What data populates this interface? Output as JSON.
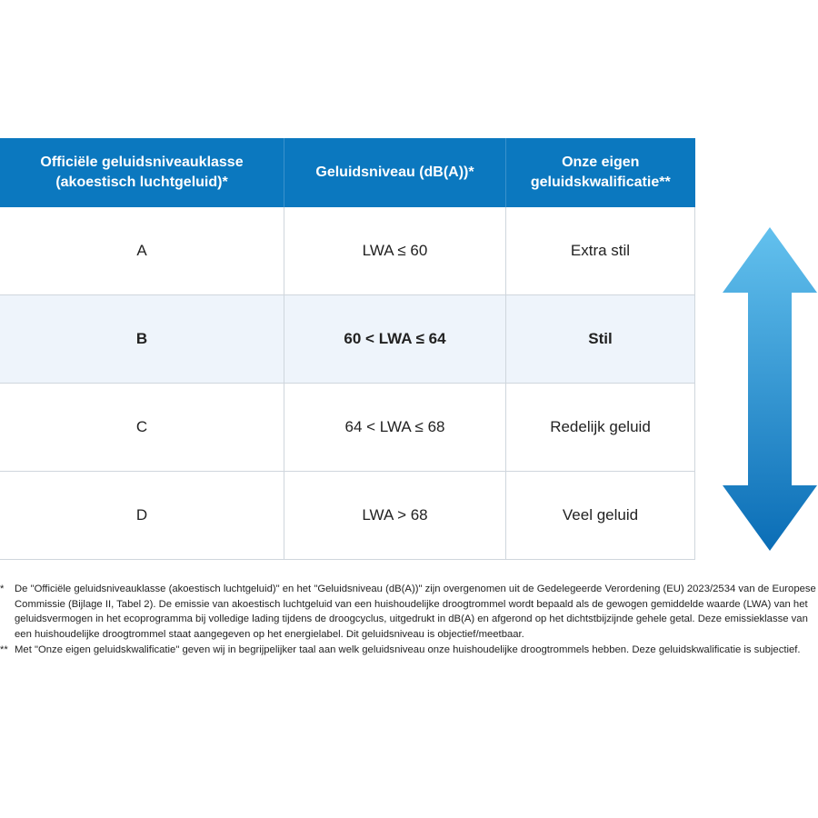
{
  "table": {
    "headers": [
      "Officiële geluidsniveauklasse (akoestisch luchtgeluid)*",
      "Geluidsniveau (dB(A))*",
      "Onze eigen geluidskwalificatie**"
    ],
    "rows": [
      [
        "A",
        "LWA ≤ 60",
        "Extra stil"
      ],
      [
        "B",
        "60 < LWA ≤ 64",
        "Stil"
      ],
      [
        "C",
        "64 < LWA ≤ 68",
        "Redelijk geluid"
      ],
      [
        "D",
        "LWA > 68",
        "Veel geluid"
      ]
    ],
    "highlighted_row": "B"
  },
  "colors": {
    "header": "#0b78bf",
    "highlight_row": "#eef4fb",
    "arrow_top": "#63c1ee",
    "arrow_bottom": "#0a6db6"
  },
  "footnotes": [
    {
      "mark": "*",
      "text": "De \"Officiële geluidsniveauklasse (akoestisch luchtgeluid)\" en het \"Geluidsniveau (dB(A))\" zijn overgenomen uit de Gedelegeerde Verordening (EU) 2023/2534 van de Europese Commissie (Bijlage II, Tabel 2). De emissie van akoestisch luchtgeluid van een huishoudelijke droogtrommel wordt bepaald als de gewogen gemiddelde waarde (LWA) van het geluidsvermogen in het ecoprogramma bij volledige lading tijdens de droogcyclus, uitgedrukt in dB(A) en afgerond op het dichtstbijzijnde gehele getal. Deze emissieklasse van een huishoudelijke droogtrommel staat aangegeven op het energielabel. Dit geluidsniveau is objectief/meetbaar."
    },
    {
      "mark": "**",
      "text": "Met \"Onze eigen geluidskwalificatie\" geven wij in begrijpelijker taal aan welk geluidsniveau onze huishoudelijke droogtrommels hebben. Deze geluidskwalificatie is subjectief."
    }
  ]
}
